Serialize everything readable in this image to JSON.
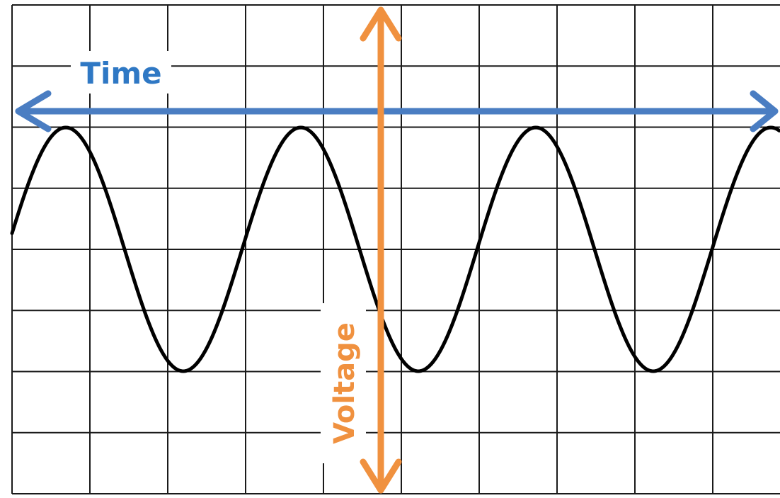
{
  "labels": {
    "time": "Time",
    "voltage": "Voltage"
  },
  "colors": {
    "time_arrow": "#4a7dc2",
    "time_text": "#2f78c4",
    "voltage_arrow": "#f0913f",
    "voltage_text": "#f0913f",
    "grid": "#1a1a1a",
    "waveform": "#000000"
  },
  "grid": {
    "columns": 10,
    "rows": 8
  },
  "waveform": {
    "type": "sine",
    "cycles_shown": 3.25
  }
}
